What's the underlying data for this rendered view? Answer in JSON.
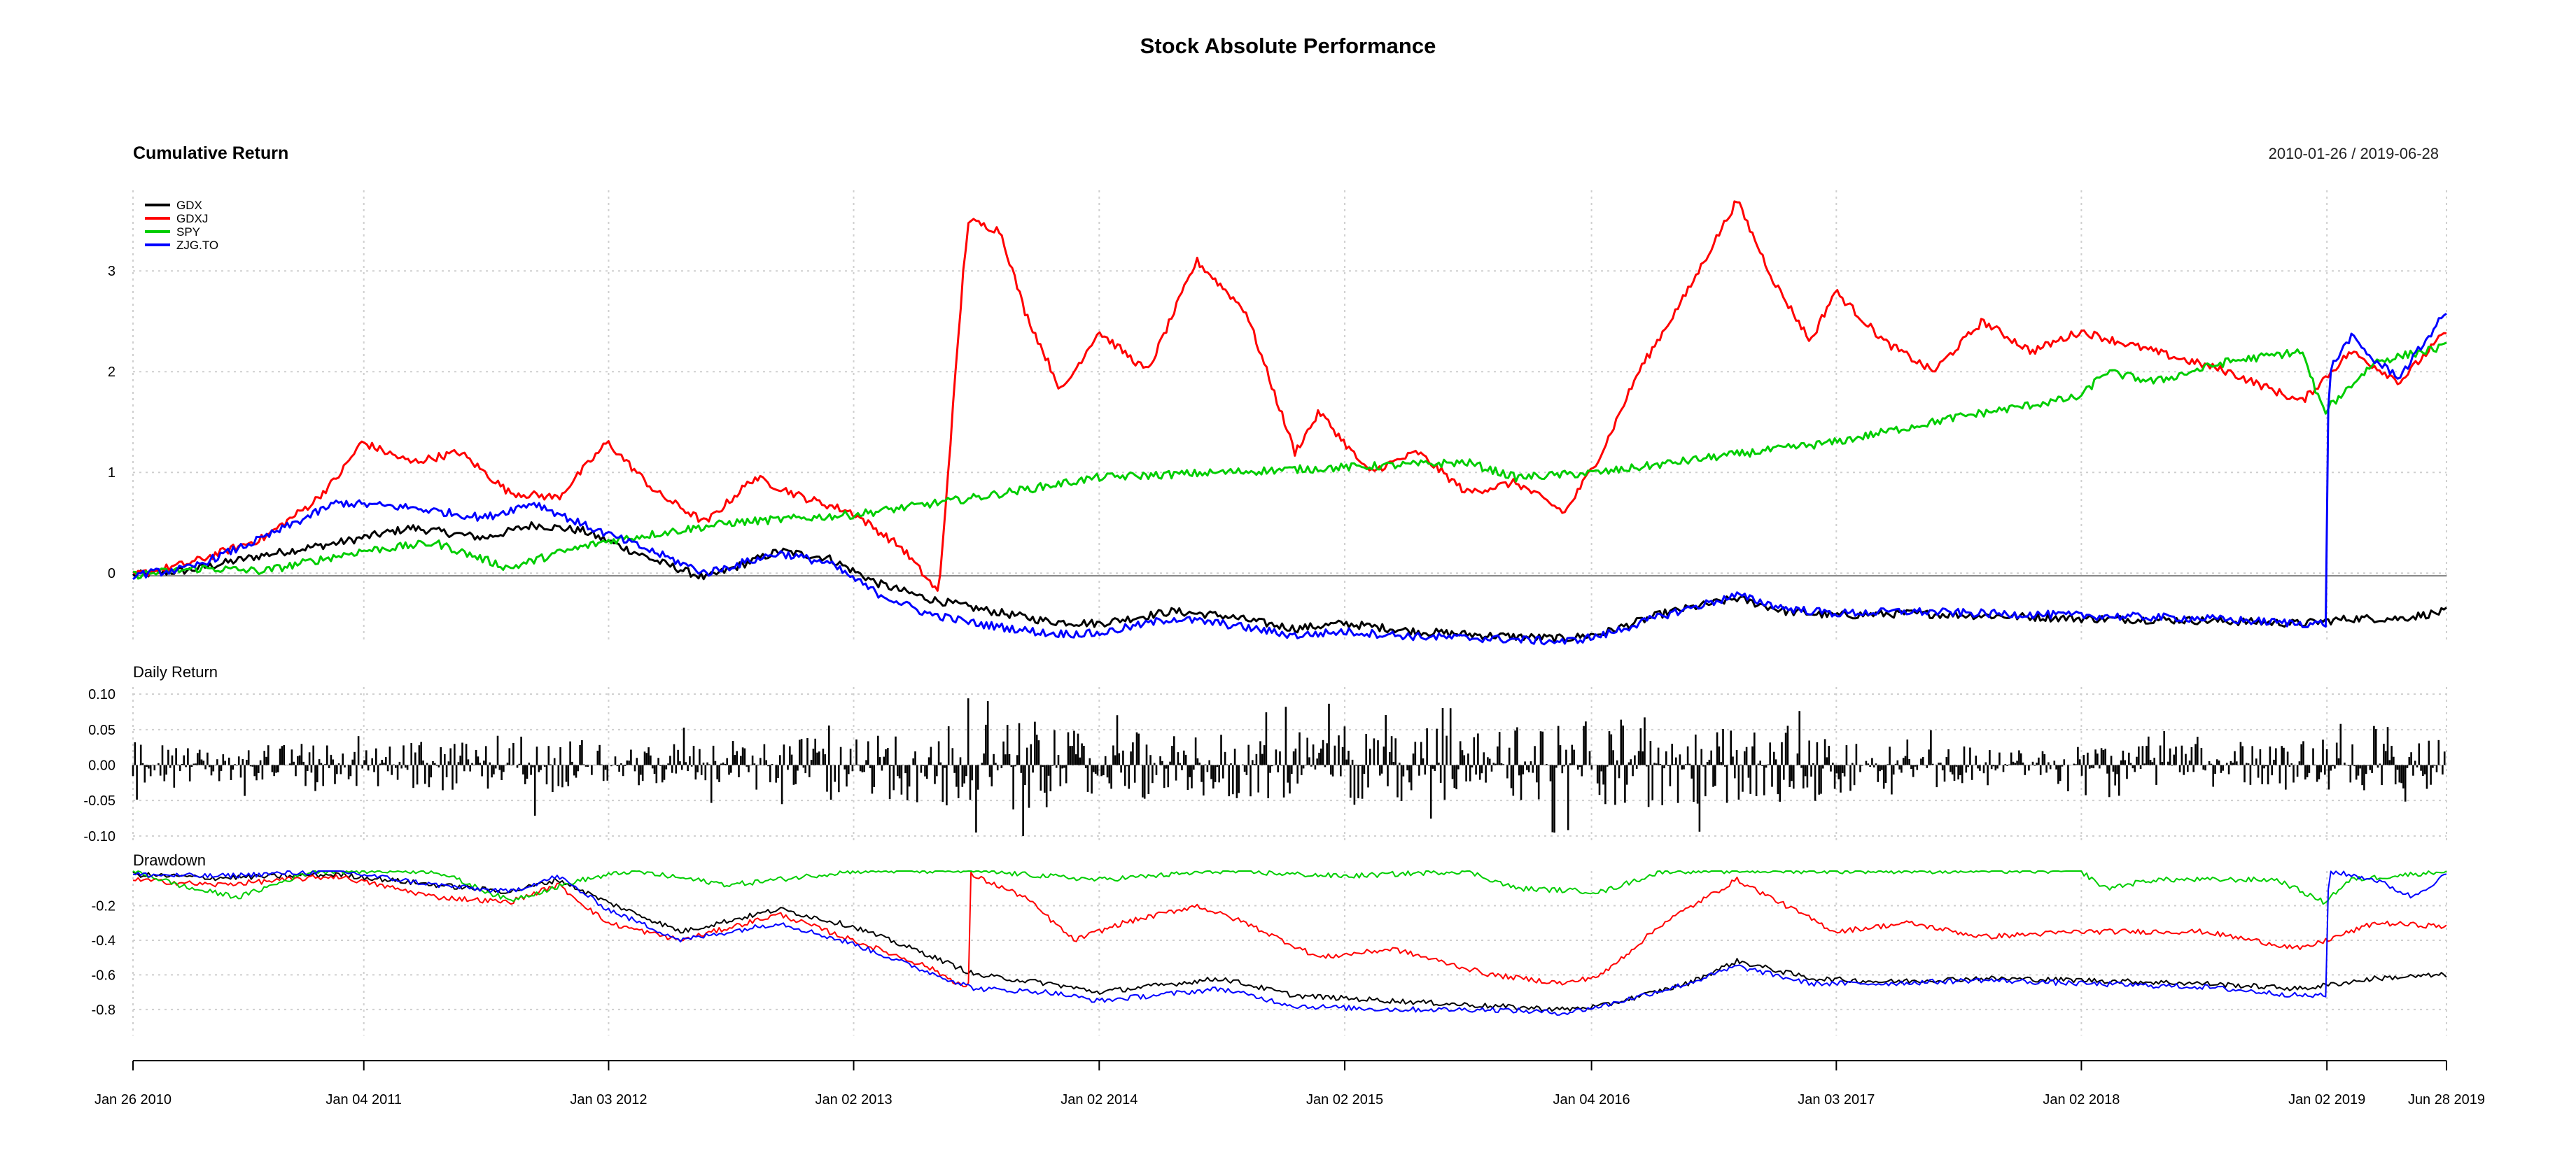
{
  "figure": {
    "title": "Stock Absolute Performance",
    "date_range": "2010-01-26 / 2019-06-28",
    "colors": {
      "GDX": "#000000",
      "GDXJ": "#ff0000",
      "SPY": "#00cd00",
      "ZJG.TO": "#0000ff"
    }
  },
  "chart_data": [
    {
      "type": "line",
      "title": "Cumulative Return",
      "x_ticks": [
        "Jan 26 2010",
        "Jan 04 2011",
        "Jan 03 2012",
        "Jan 02 2013",
        "Jan 02 2014",
        "Jan 02 2015",
        "Jan 04 2016",
        "Jan 03 2017",
        "Jan 02 2018",
        "Jan 02 2019",
        "Jun 28 2019"
      ],
      "y_ticks": [
        "0",
        "1",
        "2",
        "3"
      ],
      "ylim": [
        -0.7,
        3.8
      ],
      "legend": [
        "GDX",
        "GDXJ",
        "SPY",
        "ZJG.TO"
      ],
      "legend_position": "top-left",
      "grid": true,
      "series": [
        {
          "name": "GDX",
          "color": "#000000",
          "x": [
            2010.07,
            2010.3,
            2010.6,
            2010.9,
            2011.2,
            2011.5,
            2011.7,
            2011.9,
            2012.2,
            2012.4,
            2012.7,
            2012.9,
            2013.1,
            2013.3,
            2013.5,
            2013.8,
            2014.0,
            2014.3,
            2014.5,
            2014.8,
            2015.0,
            2015.3,
            2015.6,
            2015.9,
            2016.05,
            2016.3,
            2016.6,
            2016.8,
            2017.0,
            2017.3,
            2017.6,
            2018.0,
            2018.5,
            2018.9,
            2019.1,
            2019.3,
            2019.49
          ],
          "y": [
            -0.02,
            0.03,
            0.18,
            0.3,
            0.45,
            0.35,
            0.48,
            0.42,
            0.12,
            -0.05,
            0.22,
            0.15,
            -0.1,
            -0.25,
            -0.35,
            -0.48,
            -0.5,
            -0.38,
            -0.42,
            -0.55,
            -0.5,
            -0.58,
            -0.62,
            -0.65,
            -0.6,
            -0.4,
            -0.25,
            -0.38,
            -0.42,
            -0.4,
            -0.42,
            -0.45,
            -0.47,
            -0.5,
            -0.45,
            -0.45,
            -0.38
          ]
        },
        {
          "name": "GDXJ",
          "color": "#ff0000",
          "x": [
            2010.07,
            2010.3,
            2010.6,
            2010.8,
            2010.9,
            2011.0,
            2011.2,
            2011.4,
            2011.6,
            2011.8,
            2012.0,
            2012.2,
            2012.4,
            2012.6,
            2012.8,
            2013.0,
            2013.2,
            2013.35,
            2013.45,
            2013.47,
            2013.6,
            2013.7,
            2013.85,
            2014.0,
            2014.2,
            2014.4,
            2014.6,
            2014.8,
            2014.9,
            2015.1,
            2015.3,
            2015.5,
            2015.7,
            2015.9,
            2016.05,
            2016.2,
            2016.4,
            2016.6,
            2016.75,
            2016.9,
            2017.0,
            2017.2,
            2017.4,
            2017.6,
            2017.8,
            2018.0,
            2018.3,
            2018.6,
            2018.9,
            2019.1,
            2019.3,
            2019.49
          ],
          "y": [
            -0.02,
            0.1,
            0.35,
            0.7,
            0.95,
            1.3,
            1.1,
            1.2,
            0.8,
            0.75,
            1.3,
            0.8,
            0.5,
            0.95,
            0.75,
            0.6,
            0.25,
            -0.2,
            3.0,
            3.5,
            3.4,
            2.6,
            1.8,
            2.4,
            2.0,
            3.1,
            2.6,
            1.2,
            1.6,
            1.0,
            1.2,
            0.8,
            0.9,
            0.6,
            1.2,
            2.0,
            2.8,
            3.7,
            2.9,
            2.3,
            2.8,
            2.3,
            2.0,
            2.5,
            2.2,
            2.4,
            2.2,
            2.0,
            1.7,
            2.2,
            1.9,
            2.4
          ]
        },
        {
          "name": "SPY",
          "color": "#00cd00",
          "x": [
            2010.07,
            2010.35,
            2010.6,
            2011.0,
            2011.3,
            2011.6,
            2011.8,
            2012.0,
            2012.5,
            2013.0,
            2013.5,
            2014.0,
            2014.5,
            2015.0,
            2015.5,
            2015.7,
            2016.05,
            2016.5,
            2017.0,
            2017.5,
            2018.0,
            2018.1,
            2018.3,
            2018.6,
            2018.9,
            2018.99,
            2019.2,
            2019.49
          ],
          "y": [
            -0.02,
            0.05,
            0.02,
            0.22,
            0.3,
            0.05,
            0.2,
            0.32,
            0.5,
            0.58,
            0.75,
            0.95,
            1.0,
            1.05,
            1.1,
            0.95,
            1.0,
            1.15,
            1.3,
            1.55,
            1.75,
            2.0,
            1.9,
            2.1,
            2.2,
            1.6,
            2.1,
            2.25
          ]
        },
        {
          "name": "ZJG.TO",
          "color": "#0000ff",
          "x": [
            2010.07,
            2010.3,
            2010.6,
            2010.9,
            2011.2,
            2011.5,
            2011.7,
            2011.9,
            2012.2,
            2012.4,
            2012.7,
            2012.9,
            2013.1,
            2013.3,
            2013.5,
            2013.8,
            2014.0,
            2014.3,
            2014.5,
            2014.8,
            2015.0,
            2015.3,
            2015.6,
            2015.9,
            2016.05,
            2016.3,
            2016.6,
            2016.8,
            2017.0,
            2017.3,
            2017.6,
            2018.0,
            2018.5,
            2018.9,
            2019.0,
            2019.01,
            2019.1,
            2019.2,
            2019.3,
            2019.49
          ],
          "y": [
            -0.02,
            0.05,
            0.35,
            0.7,
            0.65,
            0.55,
            0.7,
            0.48,
            0.2,
            0.0,
            0.2,
            0.1,
            -0.2,
            -0.4,
            -0.5,
            -0.6,
            -0.6,
            -0.45,
            -0.5,
            -0.62,
            -0.58,
            -0.63,
            -0.65,
            -0.68,
            -0.62,
            -0.42,
            -0.22,
            -0.35,
            -0.4,
            -0.38,
            -0.4,
            -0.42,
            -0.45,
            -0.5,
            -0.5,
            2.0,
            2.35,
            2.1,
            1.95,
            2.6
          ]
        }
      ]
    },
    {
      "type": "bar",
      "title": "Daily Return",
      "y_ticks": [
        "0.10",
        "0.05",
        "0.00",
        "-0.05",
        "-0.10"
      ],
      "ylim": [
        -0.11,
        0.11
      ],
      "grid": true,
      "envelope": {
        "x": [
          2010.07,
          2010.5,
          2011.0,
          2011.5,
          2011.7,
          2012.0,
          2012.5,
          2013.0,
          2013.3,
          2013.5,
          2013.8,
          2014.0,
          2014.5,
          2015.0,
          2015.5,
          2016.0,
          2016.5,
          2016.7,
          2017.0,
          2017.5,
          2018.0,
          2018.5,
          2019.0,
          2019.49
        ],
        "amplitude": [
          0.035,
          0.03,
          0.03,
          0.04,
          0.045,
          0.03,
          0.035,
          0.04,
          0.06,
          0.07,
          0.06,
          0.05,
          0.045,
          0.06,
          0.05,
          0.065,
          0.07,
          0.06,
          0.05,
          0.035,
          0.03,
          0.03,
          0.04,
          0.035
        ]
      }
    },
    {
      "type": "line",
      "title": "Drawdown",
      "y_ticks": [
        "-0.2",
        "-0.4",
        "-0.6",
        "-0.8"
      ],
      "ylim": [
        -0.95,
        0.0
      ],
      "grid": true,
      "series": [
        {
          "name": "GDX",
          "color": "#000000",
          "x": [
            2010.07,
            2010.4,
            2010.9,
            2011.3,
            2011.6,
            2011.8,
            2012.0,
            2012.3,
            2012.7,
            2013.0,
            2013.3,
            2013.5,
            2013.8,
            2014.0,
            2014.5,
            2014.8,
            2015.2,
            2015.6,
            2015.9,
            2016.05,
            2016.4,
            2016.6,
            2016.9,
            2017.2,
            2017.6,
            2018.0,
            2018.5,
            2018.9,
            2019.2,
            2019.49
          ],
          "y": [
            -0.02,
            -0.04,
            -0.02,
            -0.08,
            -0.12,
            -0.05,
            -0.18,
            -0.35,
            -0.22,
            -0.32,
            -0.48,
            -0.6,
            -0.65,
            -0.7,
            -0.62,
            -0.72,
            -0.75,
            -0.78,
            -0.8,
            -0.78,
            -0.65,
            -0.52,
            -0.62,
            -0.64,
            -0.62,
            -0.63,
            -0.65,
            -0.68,
            -0.62,
            -0.6
          ]
        },
        {
          "name": "GDXJ",
          "color": "#ff0000",
          "x": [
            2010.07,
            2010.4,
            2010.9,
            2011.3,
            2011.6,
            2011.8,
            2012.0,
            2012.3,
            2012.7,
            2013.0,
            2013.3,
            2013.47,
            2013.48,
            2013.7,
            2013.9,
            2014.1,
            2014.4,
            2014.6,
            2014.9,
            2015.2,
            2015.6,
            2015.9,
            2016.05,
            2016.3,
            2016.6,
            2016.8,
            2017.0,
            2017.3,
            2017.6,
            2018.0,
            2018.5,
            2018.9,
            2019.2,
            2019.49
          ],
          "y": [
            -0.05,
            -0.08,
            -0.03,
            -0.15,
            -0.18,
            -0.08,
            -0.3,
            -0.4,
            -0.25,
            -0.4,
            -0.55,
            -0.68,
            -0.02,
            -0.15,
            -0.4,
            -0.3,
            -0.2,
            -0.3,
            -0.5,
            -0.45,
            -0.6,
            -0.65,
            -0.6,
            -0.3,
            -0.05,
            -0.2,
            -0.35,
            -0.3,
            -0.38,
            -0.35,
            -0.35,
            -0.45,
            -0.3,
            -0.32
          ]
        },
        {
          "name": "SPY",
          "color": "#00cd00",
          "x": [
            2010.07,
            2010.3,
            2010.5,
            2010.8,
            2011.3,
            2011.6,
            2011.9,
            2012.1,
            2012.5,
            2013.0,
            2013.5,
            2014.0,
            2014.5,
            2015.0,
            2015.5,
            2015.7,
            2016.05,
            2016.3,
            2017.0,
            2018.0,
            2018.1,
            2018.3,
            2018.8,
            2018.99,
            2019.1,
            2019.49
          ],
          "y": [
            0.0,
            -0.1,
            -0.15,
            0.0,
            0.0,
            -0.17,
            -0.05,
            0.0,
            -0.08,
            0.0,
            0.0,
            -0.05,
            0.0,
            -0.03,
            0.0,
            -0.1,
            -0.12,
            0.0,
            0.0,
            0.0,
            -0.1,
            -0.05,
            -0.05,
            -0.18,
            -0.05,
            0.0
          ]
        },
        {
          "name": "ZJG.TO",
          "color": "#0000ff",
          "x": [
            2010.07,
            2010.4,
            2010.9,
            2011.3,
            2011.6,
            2011.8,
            2012.0,
            2012.3,
            2012.7,
            2013.0,
            2013.3,
            2013.5,
            2013.8,
            2014.0,
            2014.5,
            2014.8,
            2015.2,
            2015.6,
            2015.9,
            2016.05,
            2016.4,
            2016.6,
            2016.9,
            2017.2,
            2017.6,
            2018.0,
            2018.5,
            2018.9,
            2019.0,
            2019.01,
            2019.2,
            2019.35,
            2019.49
          ],
          "y": [
            -0.02,
            -0.03,
            0.0,
            -0.08,
            -0.12,
            -0.03,
            -0.22,
            -0.4,
            -0.3,
            -0.42,
            -0.58,
            -0.68,
            -0.7,
            -0.75,
            -0.68,
            -0.78,
            -0.8,
            -0.8,
            -0.82,
            -0.78,
            -0.65,
            -0.55,
            -0.65,
            -0.65,
            -0.63,
            -0.65,
            -0.67,
            -0.72,
            -0.72,
            0.0,
            -0.05,
            -0.15,
            -0.02
          ]
        }
      ]
    }
  ]
}
